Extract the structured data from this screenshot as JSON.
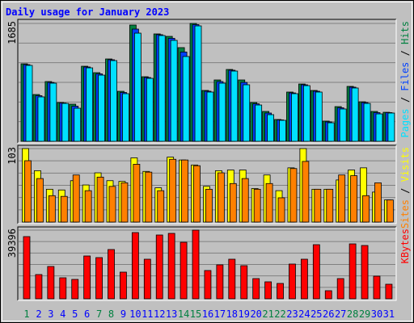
{
  "chart_data": [
    {
      "type": "bar",
      "title": "Daily usage for January 2023",
      "legend_separator": "/",
      "ylim": [
        0,
        1685
      ],
      "yticks": [
        1685
      ],
      "series": [
        {
          "name": "Hits",
          "color": "#008040",
          "values": [
            1108,
            669,
            854,
            554,
            531,
            1073,
            981,
            1177,
            715,
            1662,
            923,
            1535,
            1500,
            1339,
            1685,
            727,
            877,
            1027,
            877,
            554,
            427,
            312,
            704,
            819,
            727,
            289,
            496,
            785,
            565,
            427,
            415
          ]
        },
        {
          "name": "Files",
          "color": "#0040ff",
          "values": [
            1096,
            652,
            842,
            548,
            502,
            1062,
            964,
            1166,
            698,
            1604,
            912,
            1524,
            1472,
            1276,
            1668,
            716,
            854,
            1016,
            842,
            536,
            404,
            306,
            692,
            808,
            716,
            277,
            479,
            774,
            554,
            410,
            410
          ]
        },
        {
          "name": "Pages",
          "color": "#00e0ff",
          "values": [
            1085,
            635,
            831,
            542,
            473,
            1050,
            946,
            1154,
            681,
            1546,
            900,
            1512,
            1443,
            1212,
            1650,
            704,
            831,
            1004,
            808,
            519,
            381,
            300,
            681,
            796,
            704,
            265,
            462,
            762,
            542,
            392,
            404
          ]
        }
      ]
    },
    {
      "type": "bar",
      "legend_separator": "/",
      "ylim": [
        0,
        103
      ],
      "yticks": [
        103
      ],
      "series": [
        {
          "name": "Visits",
          "color": "#ffff00",
          "values": [
            103,
            72,
            46,
            45,
            58,
            52,
            69,
            58,
            57,
            90,
            71,
            48,
            91,
            87,
            80,
            50,
            72,
            73,
            73,
            47,
            66,
            44,
            76,
            103,
            46,
            46,
            59,
            73,
            76,
            42,
            31
          ]
        },
        {
          "name": "Sites",
          "color": "#ff8000",
          "values": [
            86,
            61,
            37,
            36,
            66,
            44,
            63,
            50,
            55,
            81,
            70,
            44,
            88,
            87,
            79,
            46,
            69,
            54,
            61,
            46,
            54,
            34,
            75,
            85,
            46,
            46,
            66,
            65,
            37,
            55,
            31
          ]
        }
      ]
    },
    {
      "type": "bar",
      "ylim": [
        0,
        39396
      ],
      "yticks": [
        39396
      ],
      "categories": [
        "1",
        "2",
        "3",
        "4",
        "5",
        "6",
        "7",
        "8",
        "9",
        "10",
        "11",
        "12",
        "13",
        "14",
        "15",
        "16",
        "17",
        "18",
        "19",
        "20",
        "21",
        "22",
        "23",
        "24",
        "25",
        "26",
        "27",
        "28",
        "29",
        "30",
        "31"
      ],
      "category_colors": [
        "#008040",
        "#0000ff",
        "#0000ff",
        "#0000ff",
        "#0000ff",
        "#0000ff",
        "#008040",
        "#008040",
        "#0000ff",
        "#0000ff",
        "#0000ff",
        "#0000ff",
        "#0000ff",
        "#008040",
        "#008040",
        "#0000ff",
        "#0000ff",
        "#0000ff",
        "#0000ff",
        "#0000ff",
        "#008040",
        "#008040",
        "#0000ff",
        "#0000ff",
        "#0000ff",
        "#0000ff",
        "#0000ff",
        "#008040",
        "#008040",
        "#0000ff",
        "#0000ff"
      ],
      "series": [
        {
          "name": "KBytes",
          "color": "#ff0000",
          "values": [
            35688,
            13905,
            18540,
            12051,
            11124,
            24565,
            23638,
            28273,
            15296,
            38005,
            22711,
            36615,
            37542,
            32443,
            39396,
            16223,
            19467,
            22711,
            19004,
            11588,
            9734,
            8807,
            19931,
            22711,
            31053,
            4635,
            11588,
            31516,
            30589,
            12978,
            8343
          ]
        }
      ]
    }
  ]
}
